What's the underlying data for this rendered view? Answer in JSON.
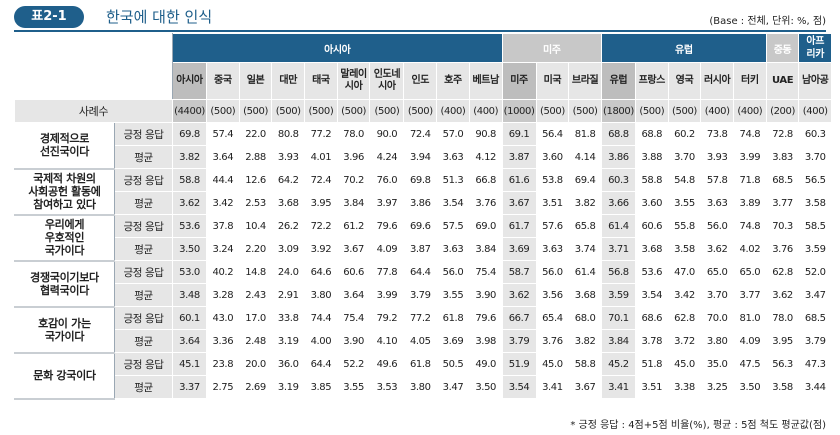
{
  "header": {
    "badge": "표2-1",
    "title": "한국에 대한 인식",
    "base_note": "(Base : 전체, 단위: %, 점)"
  },
  "groups": [
    {
      "label": "아시아",
      "span": 10
    },
    {
      "label": "미주",
      "span": 3
    },
    {
      "label": "유럽",
      "span": 5
    },
    {
      "label": "중동",
      "span": 1
    },
    {
      "label": "아프\n리카",
      "span": 1
    }
  ],
  "countries": [
    "아시아",
    "중국",
    "일본",
    "대만",
    "태국",
    "말레이\n시아",
    "인도네\n시아",
    "인도",
    "호주",
    "베트남",
    "미주",
    "미국",
    "브라질",
    "유럽",
    "프랑스",
    "영국",
    "러시아",
    "터키",
    "UAE",
    "남아공"
  ],
  "sample_label": "사례수",
  "sample_sizes": [
    "(4400)",
    "(500)",
    "(500)",
    "(500)",
    "(500)",
    "(500)",
    "(500)",
    "(500)",
    "(400)",
    "(400)",
    "(1000)",
    "(500)",
    "(500)",
    "(1800)",
    "(500)",
    "(500)",
    "(400)",
    "(400)",
    "(200)",
    "(400)"
  ],
  "metric_labels": {
    "pos": "긍정 응답",
    "avg": "평균"
  },
  "categories": [
    {
      "label": "경제적으로\n선진국이다",
      "pos": [
        "69.8",
        "57.4",
        "22.0",
        "80.8",
        "77.2",
        "78.0",
        "90.0",
        "72.4",
        "57.0",
        "90.8",
        "69.1",
        "56.4",
        "81.8",
        "68.8",
        "68.8",
        "60.2",
        "73.8",
        "74.8",
        "72.8",
        "60.3"
      ],
      "avg": [
        "3.82",
        "3.64",
        "2.88",
        "3.93",
        "4.01",
        "3.96",
        "4.24",
        "3.94",
        "3.63",
        "4.12",
        "3.87",
        "3.60",
        "4.14",
        "3.86",
        "3.88",
        "3.70",
        "3.93",
        "3.99",
        "3.83",
        "3.70"
      ]
    },
    {
      "label": "국제적 차원의\n사회공헌 활동에\n참여하고 있다",
      "pos": [
        "58.8",
        "44.4",
        "12.6",
        "64.2",
        "72.4",
        "70.2",
        "76.0",
        "69.8",
        "51.3",
        "66.8",
        "61.6",
        "53.8",
        "69.4",
        "60.3",
        "58.8",
        "54.8",
        "57.8",
        "71.8",
        "68.5",
        "56.5"
      ],
      "avg": [
        "3.62",
        "3.42",
        "2.53",
        "3.68",
        "3.95",
        "3.84",
        "3.97",
        "3.86",
        "3.54",
        "3.76",
        "3.67",
        "3.51",
        "3.82",
        "3.66",
        "3.60",
        "3.55",
        "3.63",
        "3.89",
        "3.77",
        "3.58"
      ]
    },
    {
      "label": "우리에게\n우호적인\n국가이다",
      "pos": [
        "53.6",
        "37.8",
        "10.4",
        "26.2",
        "72.2",
        "61.2",
        "79.6",
        "69.6",
        "57.5",
        "69.0",
        "61.7",
        "57.6",
        "65.8",
        "61.4",
        "60.6",
        "55.8",
        "56.0",
        "74.8",
        "70.3",
        "58.5"
      ],
      "avg": [
        "3.50",
        "3.24",
        "2.20",
        "3.09",
        "3.92",
        "3.67",
        "4.09",
        "3.87",
        "3.63",
        "3.84",
        "3.69",
        "3.63",
        "3.74",
        "3.71",
        "3.68",
        "3.58",
        "3.62",
        "4.02",
        "3.76",
        "3.59"
      ]
    },
    {
      "label": "경쟁국이기보다\n협력국이다",
      "pos": [
        "53.0",
        "40.2",
        "14.8",
        "24.0",
        "64.6",
        "60.6",
        "77.8",
        "64.4",
        "56.0",
        "75.4",
        "58.7",
        "56.0",
        "61.4",
        "56.8",
        "53.6",
        "47.0",
        "65.0",
        "65.0",
        "62.8",
        "52.0"
      ],
      "avg": [
        "3.48",
        "3.28",
        "2.43",
        "2.91",
        "3.80",
        "3.64",
        "3.99",
        "3.79",
        "3.55",
        "3.90",
        "3.62",
        "3.56",
        "3.68",
        "3.59",
        "3.54",
        "3.42",
        "3.70",
        "3.77",
        "3.62",
        "3.47"
      ]
    },
    {
      "label": "호감이 가는\n국가이다",
      "pos": [
        "60.1",
        "43.0",
        "17.0",
        "33.8",
        "74.4",
        "75.4",
        "79.2",
        "77.2",
        "61.8",
        "79.6",
        "66.7",
        "65.4",
        "68.0",
        "70.1",
        "68.6",
        "62.8",
        "70.0",
        "81.0",
        "78.0",
        "68.5"
      ],
      "avg": [
        "3.64",
        "3.36",
        "2.48",
        "3.19",
        "4.00",
        "3.90",
        "4.10",
        "4.05",
        "3.69",
        "3.98",
        "3.79",
        "3.76",
        "3.82",
        "3.84",
        "3.78",
        "3.72",
        "3.80",
        "4.09",
        "3.95",
        "3.79"
      ]
    },
    {
      "label": "문화 강국이다",
      "pos": [
        "45.1",
        "23.8",
        "20.0",
        "36.0",
        "64.4",
        "52.2",
        "49.6",
        "61.8",
        "50.5",
        "49.0",
        "51.9",
        "45.0",
        "58.8",
        "45.2",
        "51.8",
        "45.0",
        "35.0",
        "47.5",
        "56.3",
        "47.3"
      ],
      "avg": [
        "3.37",
        "2.75",
        "2.69",
        "3.19",
        "3.85",
        "3.55",
        "3.53",
        "3.80",
        "3.47",
        "3.50",
        "3.54",
        "3.41",
        "3.67",
        "3.41",
        "3.51",
        "3.38",
        "3.25",
        "3.50",
        "3.58",
        "3.44"
      ]
    }
  ],
  "footnote": "* 긍정 응답 : 4점+5점 비율(%), 평균 : 5점 척도 평균값(점)"
}
